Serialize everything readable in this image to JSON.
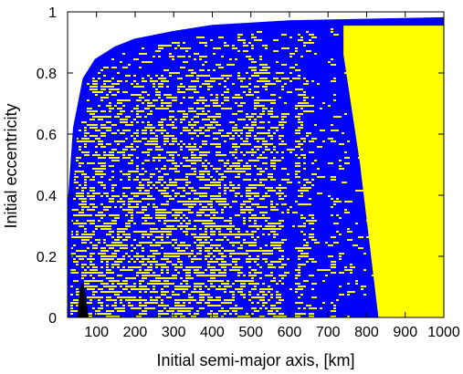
{
  "chart_data": {
    "type": "scatter",
    "title": "",
    "xlabel": "Initial semi-major axis, [km]",
    "ylabel": "Initial eccentricity",
    "xlim": [
      25,
      1000
    ],
    "ylim": [
      0,
      1
    ],
    "xticks": [
      100,
      200,
      300,
      400,
      500,
      600,
      700,
      800,
      900,
      1000
    ],
    "yticks": [
      0,
      0.2,
      0.4,
      0.6,
      0.8,
      1
    ],
    "ytick_labels": [
      "0",
      "0.2",
      "0.4",
      "0.6",
      "0.8",
      "1"
    ],
    "grid": false,
    "legend": "none",
    "colors": {
      "stable": "#ffff00",
      "unstable": "#0000ff",
      "collision": "#000000",
      "axes": "#000000",
      "background": "#ffffff"
    },
    "regions": [
      {
        "name": "stable",
        "color": "#ffff00",
        "description_points": [
          [
            720,
            0
          ],
          [
            1000,
            0
          ],
          [
            1000,
            0.96
          ],
          [
            740,
            0.96
          ],
          [
            740,
            0.85
          ],
          [
            780,
            0.5
          ],
          [
            820,
            0.1
          ]
        ]
      },
      {
        "name": "unstable-boundary",
        "color": "#0000ff",
        "upper_envelope": [
          [
            25,
            0
          ],
          [
            30,
            0.35
          ],
          [
            45,
            0.62
          ],
          [
            70,
            0.78
          ],
          [
            100,
            0.84
          ],
          [
            150,
            0.88
          ],
          [
            200,
            0.905
          ],
          [
            300,
            0.93
          ],
          [
            400,
            0.95
          ],
          [
            600,
            0.965
          ],
          [
            800,
            0.97
          ],
          [
            1000,
            0.975
          ]
        ]
      },
      {
        "name": "collision",
        "color": "#000000",
        "points": [
          [
            50,
            0
          ],
          [
            55,
            0.08
          ],
          [
            62,
            0.12
          ],
          [
            68,
            0.1
          ],
          [
            74,
            0.05
          ],
          [
            80,
            0
          ]
        ]
      }
    ]
  }
}
